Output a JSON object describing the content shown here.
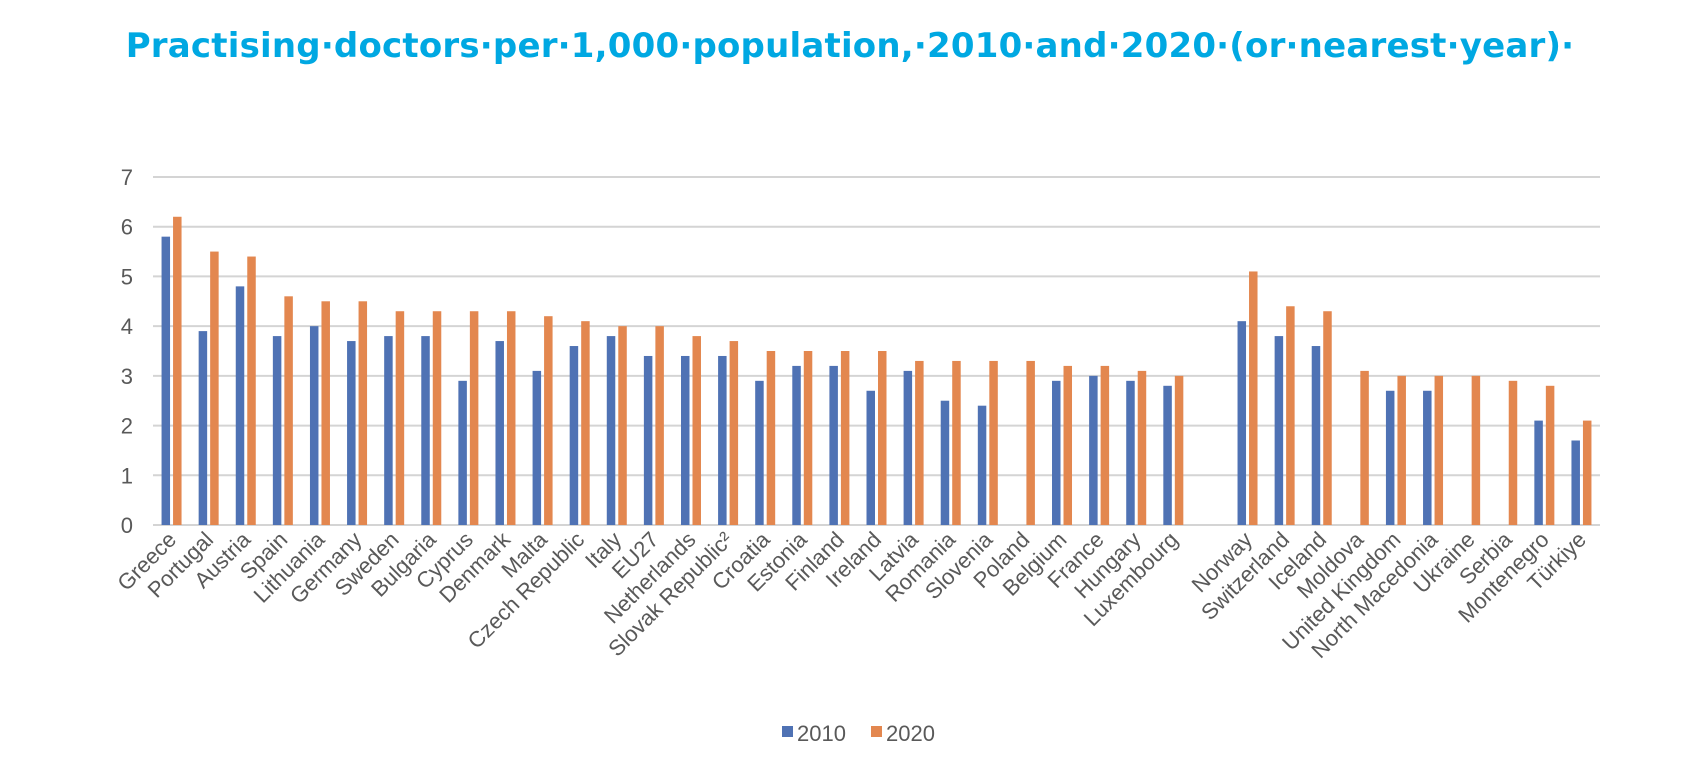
{
  "title": "Practising·doctors·per·1,000·population,·2010·and·2020·(or·nearest·year)·",
  "chart_data": {
    "type": "bar",
    "title": "Practising doctors per 1,000 population, 2010 and 2020 (or nearest year)",
    "xlabel": "",
    "ylabel": "",
    "ylim": [
      0,
      7
    ],
    "yticks": [
      "0",
      "1",
      "2",
      "3",
      "4",
      "5",
      "6",
      "7"
    ],
    "grid": true,
    "legend_position": "bottom",
    "categories": [
      "Greece",
      "Portugal",
      "Austria",
      "Spain",
      "Lithuania",
      "Germany",
      "Sweden",
      "Bulgaria",
      "Cyprus",
      "Denmark",
      "Malta",
      "Czech Republic",
      "Italy",
      "EU27",
      "Netherlands",
      "Slovak Republic²",
      "Croatia",
      "Estonia",
      "Finland",
      "Ireland",
      "Latvia",
      "Romania",
      "Slovenia",
      "Poland",
      "Belgium",
      "France",
      "Hungary",
      "Luxembourg",
      "",
      "Norway",
      "Switzerland",
      "Iceland",
      "Moldova",
      "United Kingdom",
      "North Macedonia",
      "Ukraine",
      "Serbia",
      "Montenegro",
      "Türkiye"
    ],
    "series": [
      {
        "name": "2010",
        "color": "#4F72B4",
        "values": [
          5.8,
          3.9,
          4.8,
          3.8,
          4.0,
          3.7,
          3.8,
          3.8,
          2.9,
          3.7,
          3.1,
          3.6,
          3.8,
          3.4,
          3.4,
          3.4,
          2.9,
          3.2,
          3.2,
          2.7,
          3.1,
          2.5,
          2.4,
          null,
          2.9,
          3.0,
          2.9,
          2.8,
          null,
          4.1,
          3.8,
          3.6,
          null,
          2.7,
          2.7,
          null,
          null,
          2.1,
          1.7
        ]
      },
      {
        "name": "2020",
        "color": "#E3874F",
        "values": [
          6.2,
          5.5,
          5.4,
          4.6,
          4.5,
          4.5,
          4.3,
          4.3,
          4.3,
          4.3,
          4.2,
          4.1,
          4.0,
          4.0,
          3.8,
          3.7,
          3.5,
          3.5,
          3.5,
          3.5,
          3.3,
          3.3,
          3.3,
          3.3,
          3.2,
          3.2,
          3.1,
          3.0,
          null,
          5.1,
          4.4,
          4.3,
          3.1,
          3.0,
          3.0,
          3.0,
          2.9,
          2.8,
          2.1
        ]
      }
    ]
  },
  "legend": {
    "items": [
      {
        "label": "2010",
        "color": "#4F72B4"
      },
      {
        "label": "2020",
        "color": "#E3874F"
      }
    ]
  }
}
